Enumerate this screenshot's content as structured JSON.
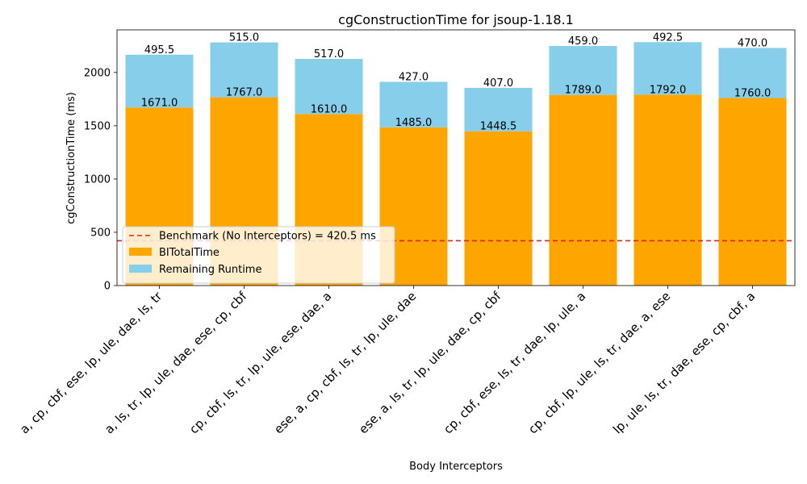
{
  "chart_data": {
    "type": "bar",
    "stacked": true,
    "title": "cgConstructionTime for jsoup-1.18.1",
    "xlabel": "Body Interceptors",
    "ylabel": "cgConstructionTime (ms)",
    "ylim": [
      0,
      2400
    ],
    "yticks": [
      0,
      500,
      1000,
      1500,
      2000
    ],
    "ytick_labels": [
      "0",
      "500",
      "1000",
      "1500",
      "2000"
    ],
    "categories": [
      "a, cp, cbf, ese, lp, ule, dae, ls, tr",
      "a, ls, tr, lp, ule, dae, ese, cp, cbf",
      "cp, cbf, ls, tr, lp, ule, ese, dae, a",
      "ese, a, cp, cbf, ls, tr, lp, ule, dae",
      "ese, a, ls, tr, lp, ule, dae, cp, cbf",
      "cp, cbf, ese, ls, tr, dae, lp, ule, a",
      "cp, cbf, lp, ule, ls, tr, dae, a, ese",
      "lp, ule, ls, tr, dae, ese, cp, cbf, a"
    ],
    "series": [
      {
        "name": "BITotalTime",
        "color": "#ffa500",
        "values": [
          1671.0,
          1767.0,
          1610.0,
          1485.0,
          1448.5,
          1789.0,
          1792.0,
          1760.0
        ],
        "labels": [
          "1671.0",
          "1767.0",
          "1610.0",
          "1485.0",
          "1448.5",
          "1789.0",
          "1792.0",
          "1760.0"
        ]
      },
      {
        "name": "Remaining Runtime",
        "color": "#87ceeb",
        "values": [
          495.5,
          515.0,
          517.0,
          427.0,
          407.0,
          459.0,
          492.5,
          470.0
        ],
        "labels": [
          "495.5",
          "515.0",
          "517.0",
          "427.0",
          "407.0",
          "459.0",
          "492.5",
          "470.0"
        ]
      }
    ],
    "benchmark": {
      "value": 420.5,
      "label": "Benchmark (No Interceptors) = 420.5 ms",
      "color": "#d62728",
      "style": "dashed"
    },
    "legend_position": "lower-left",
    "grid": false
  }
}
